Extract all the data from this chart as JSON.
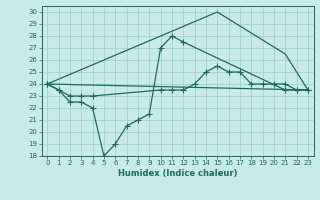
{
  "xlabel": "Humidex (Indice chaleur)",
  "background_color": "#caeaea",
  "grid_color": "#99cccc",
  "line_color": "#1a6b5a",
  "xlim": [
    -0.5,
    23.5
  ],
  "ylim": [
    18,
    30.5
  ],
  "xticks": [
    0,
    1,
    2,
    3,
    4,
    5,
    6,
    7,
    8,
    9,
    10,
    11,
    12,
    13,
    14,
    15,
    16,
    17,
    18,
    19,
    20,
    21,
    22,
    23
  ],
  "yticks": [
    18,
    19,
    20,
    21,
    22,
    23,
    24,
    25,
    26,
    27,
    28,
    29,
    30
  ],
  "series_smooth": {
    "x": [
      0,
      23
    ],
    "y": [
      24.0,
      23.5
    ]
  },
  "series_triangle_top": {
    "x": [
      0,
      15,
      21,
      23
    ],
    "y": [
      24.0,
      30.0,
      26.5,
      23.5
    ]
  },
  "series_mid": {
    "x": [
      0,
      1,
      2,
      3,
      4,
      10,
      11,
      12,
      13,
      14,
      15,
      16,
      17,
      18,
      19,
      20,
      21,
      22,
      23
    ],
    "y": [
      24.0,
      23.5,
      23.0,
      23.0,
      23.0,
      23.5,
      23.5,
      23.5,
      24.0,
      25.0,
      25.5,
      25.0,
      25.0,
      24.0,
      24.0,
      24.0,
      24.0,
      23.5,
      23.5
    ]
  },
  "series_zigzag": {
    "x": [
      0,
      1,
      2,
      3,
      4,
      5,
      6,
      7,
      8,
      9,
      10,
      11,
      12,
      21,
      22,
      23
    ],
    "y": [
      24.0,
      23.5,
      22.5,
      22.5,
      22.0,
      18.0,
      19.0,
      20.5,
      21.0,
      21.5,
      27.0,
      28.0,
      27.5,
      23.5,
      23.5,
      23.5
    ]
  }
}
